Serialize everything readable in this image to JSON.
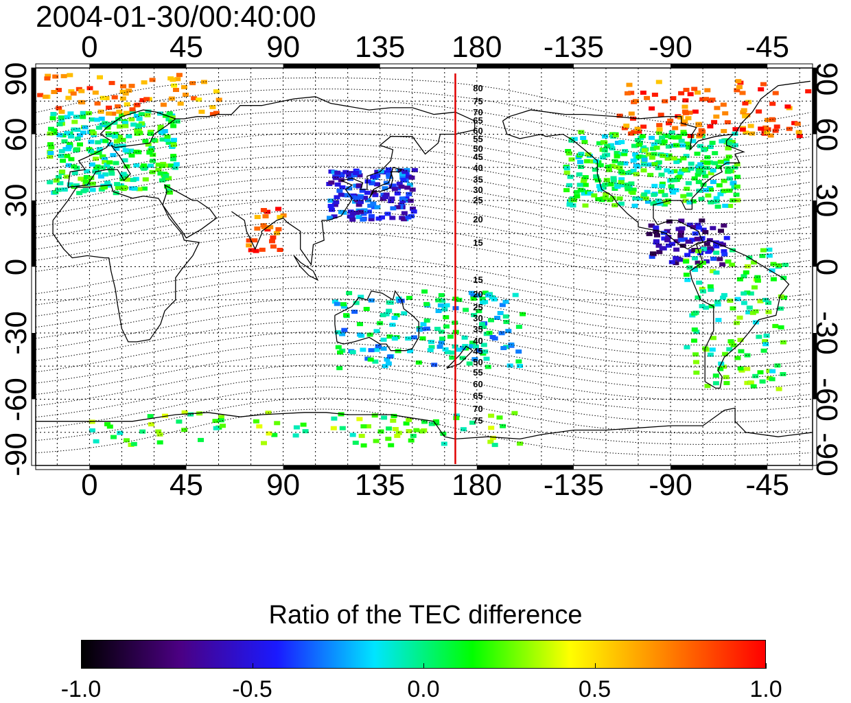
{
  "timestamp": "2004-01-30/00:40:00",
  "map": {
    "projection": "equirectangular",
    "longitude_range": [
      -25,
      336
    ],
    "latitude_range": [
      -90,
      90
    ],
    "longitude_ticks": [
      {
        "value": 0,
        "label": "0"
      },
      {
        "value": 45,
        "label": "45"
      },
      {
        "value": 90,
        "label": "90"
      },
      {
        "value": 135,
        "label": "135"
      },
      {
        "value": 180,
        "label": "180"
      },
      {
        "value": 225,
        "label": "-135"
      },
      {
        "value": 270,
        "label": "-90"
      },
      {
        "value": 315,
        "label": "-45"
      }
    ],
    "latitude_ticks": [
      {
        "value": 90,
        "label": "90"
      },
      {
        "value": 60,
        "label": "60"
      },
      {
        "value": 30,
        "label": "30"
      },
      {
        "value": 0,
        "label": "0"
      },
      {
        "value": -30,
        "label": "-30"
      },
      {
        "value": -60,
        "label": "-60"
      },
      {
        "value": -90,
        "label": "-90"
      }
    ],
    "grid": true,
    "marker_line": {
      "longitude": 170,
      "color": "#e00000"
    },
    "contour_labels_north": [
      "80",
      "75",
      "70",
      "65",
      "60",
      "55",
      "50",
      "45",
      "40",
      "35",
      "30",
      "25",
      "20",
      "15"
    ],
    "contour_labels_south": [
      "15",
      "20",
      "25",
      "30",
      "35",
      "40",
      "45",
      "50",
      "55",
      "60",
      "65",
      "70",
      "75"
    ]
  },
  "colorbar": {
    "title": "Ratio of the TEC difference",
    "min": -1.0,
    "max": 1.0,
    "tick_labels": [
      "-1.0",
      "-0.5",
      "0.0",
      "0.5",
      "1.0"
    ],
    "colormap": [
      "#000000",
      "#4b0082",
      "#1a1aff",
      "#00e5ff",
      "#00ff00",
      "#ffff00",
      "#ff8000",
      "#ff0000"
    ]
  },
  "tec_regions": [
    {
      "name": "Europe",
      "value": 0.05
    },
    {
      "name": "Northern Atlantic high latitudes",
      "value": 0.7
    },
    {
      "name": "Japan and East China",
      "value": -0.45
    },
    {
      "name": "North America",
      "value": 0.05
    },
    {
      "name": "Caribbean and Central America",
      "value": -0.6
    },
    {
      "name": "South America",
      "value": 0.1
    },
    {
      "name": "Australia",
      "value": -0.1
    },
    {
      "name": "Antarctic coast",
      "value": 0.15
    },
    {
      "name": "Arctic Canada and Greenland",
      "value": 0.8
    },
    {
      "name": "India",
      "value": 0.8
    }
  ]
}
